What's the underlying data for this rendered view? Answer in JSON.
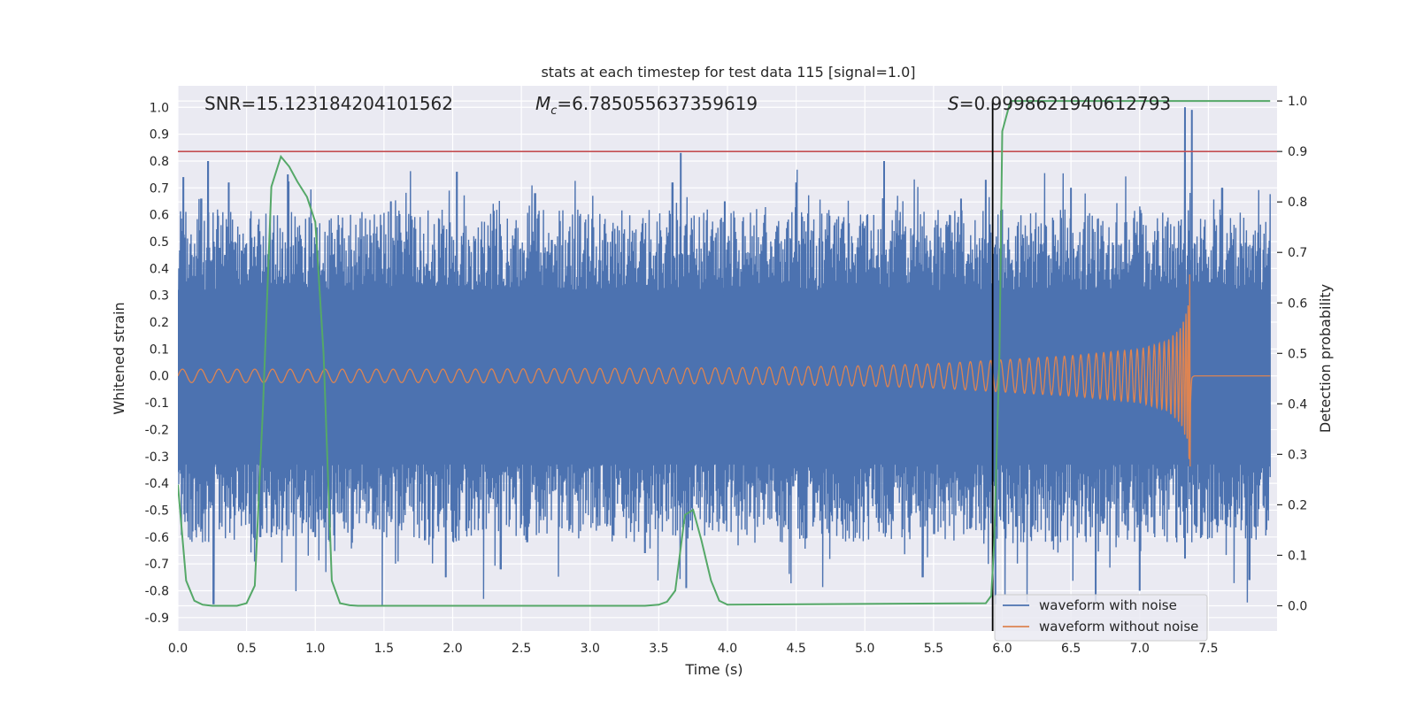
{
  "chart_data": {
    "type": "line",
    "title": "stats at each timestep for test data 115 [signal=1.0]",
    "xlabel": "Time (s)",
    "ylabel": "Whitened strain",
    "y2label": "Detection probability",
    "xlim": [
      0.0,
      8.0
    ],
    "ylim": [
      -0.95,
      1.08
    ],
    "y2lim": [
      -0.05,
      1.03
    ],
    "x_ticks": [
      "0.0",
      "0.5",
      "1.0",
      "1.5",
      "2.0",
      "2.5",
      "3.0",
      "3.5",
      "4.0",
      "4.5",
      "5.0",
      "5.5",
      "6.0",
      "6.5",
      "7.0",
      "7.5"
    ],
    "y_ticks": [
      "1.0",
      "0.9",
      "0.8",
      "0.7",
      "0.6",
      "0.5",
      "0.4",
      "0.3",
      "0.2",
      "0.1",
      "0.0",
      "-0.1",
      "-0.2",
      "-0.3",
      "-0.4",
      "-0.5",
      "-0.6",
      "-0.7",
      "-0.8",
      "-0.9"
    ],
    "y2_ticks": [
      "1.0",
      "0.9",
      "0.8",
      "0.7",
      "0.6",
      "0.5",
      "0.4",
      "0.3",
      "0.2",
      "0.1",
      "0.0"
    ],
    "grid": true,
    "legend_position": "lower-right",
    "annotations": {
      "snr": "SNR=15.123184204101562",
      "mc_symbol": "M",
      "mc_sub": "c",
      "mc_value": "=6.785055637359619",
      "s_symbol": "S",
      "s_value": "=0.9998621940612793"
    },
    "threshold_probability": 0.9,
    "detection_time": 5.93,
    "merger_time": 7.37,
    "series": [
      {
        "name": "waveform with noise",
        "color": "#4c72b0",
        "envelope_typical": 0.32,
        "peak_values": [
          [
            0.04,
            0.74
          ],
          [
            0.17,
            0.66
          ],
          [
            0.22,
            0.8
          ],
          [
            0.37,
            0.72
          ],
          [
            0.8,
            0.75
          ],
          [
            1.55,
            0.65
          ],
          [
            2.03,
            0.76
          ],
          [
            2.6,
            0.68
          ],
          [
            3.6,
            0.72
          ],
          [
            3.66,
            0.83
          ],
          [
            3.98,
            0.65
          ],
          [
            4.5,
            0.72
          ],
          [
            5.14,
            0.8
          ],
          [
            5.7,
            0.66
          ],
          [
            5.88,
            0.73
          ],
          [
            6.5,
            0.7
          ],
          [
            7.33,
            1.0
          ],
          [
            7.38,
            0.99
          ],
          [
            7.6,
            0.7
          ]
        ],
        "trough_values": [
          [
            0.03,
            -0.44
          ],
          [
            0.26,
            -0.85
          ],
          [
            0.6,
            -0.6
          ],
          [
            1.0,
            -0.6
          ],
          [
            1.95,
            -0.75
          ],
          [
            2.35,
            -0.72
          ],
          [
            3.4,
            -0.66
          ],
          [
            3.7,
            -0.79
          ],
          [
            5.42,
            -0.75
          ],
          [
            5.95,
            -0.85
          ],
          [
            6.68,
            -0.84
          ],
          [
            7.0,
            -0.8
          ],
          [
            7.33,
            -0.68
          ],
          [
            7.8,
            -0.76
          ]
        ]
      },
      {
        "name": "waveform without noise",
        "color": "#dd8452",
        "envelope": {
          "x": [
            0.0,
            2.0,
            4.0,
            5.0,
            5.5,
            6.0,
            6.5,
            7.0,
            7.2,
            7.3,
            7.35,
            7.37,
            7.38,
            7.4,
            7.95
          ],
          "y": [
            0.025,
            0.025,
            0.03,
            0.038,
            0.045,
            0.06,
            0.075,
            0.1,
            0.13,
            0.18,
            0.25,
            0.43,
            0.08,
            0.0,
            0.0
          ]
        },
        "trough_min": -0.38
      },
      {
        "name": "detection probability",
        "color": "#55a868",
        "axis": "right",
        "x": [
          0.0,
          0.06,
          0.12,
          0.18,
          0.25,
          0.3,
          0.37,
          0.43,
          0.5,
          0.56,
          0.62,
          0.68,
          0.75,
          0.81,
          0.87,
          0.94,
          1.0,
          1.06,
          1.12,
          1.18,
          1.25,
          1.31,
          1.4,
          3.4,
          3.5,
          3.56,
          3.62,
          3.69,
          3.75,
          3.81,
          3.88,
          3.94,
          4.0,
          5.88,
          5.92,
          5.94,
          5.98,
          6.0,
          6.06,
          6.12,
          7.95
        ],
        "y": [
          0.24,
          0.05,
          0.01,
          0.002,
          0.0,
          0.0,
          0.0,
          0.0,
          0.005,
          0.04,
          0.4,
          0.83,
          0.89,
          0.87,
          0.84,
          0.81,
          0.76,
          0.5,
          0.05,
          0.005,
          0.001,
          0.0,
          0.0,
          0.0,
          0.002,
          0.008,
          0.03,
          0.18,
          0.19,
          0.13,
          0.05,
          0.01,
          0.002,
          0.005,
          0.02,
          0.12,
          0.5,
          0.94,
          1.0,
          1.0,
          1.0
        ]
      }
    ]
  }
}
